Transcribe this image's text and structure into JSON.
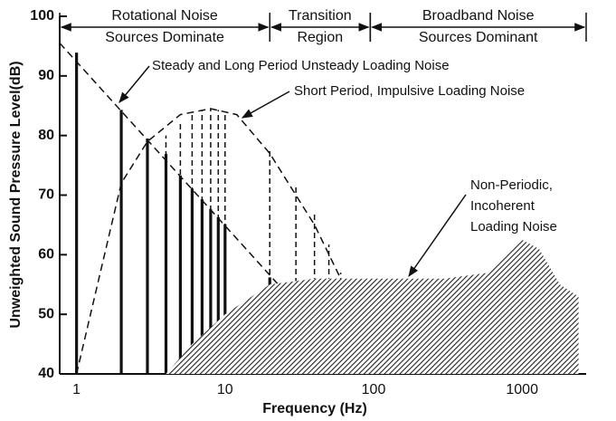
{
  "chart_data": {
    "type": "line",
    "xlabel": "Frequency (Hz)",
    "ylabel": "Unweighted Sound Pressure Level(dB)",
    "xlog": true,
    "xlim": [
      0.77,
      2700
    ],
    "ylim": [
      40,
      100
    ],
    "xticks": [
      1,
      10,
      100,
      1000
    ],
    "yticks": [
      40,
      50,
      60,
      70,
      80,
      90,
      100
    ],
    "regions": [
      {
        "label": [
          "Rotational Noise",
          "Sources Dominate"
        ],
        "x": [
          0.77,
          20
        ]
      },
      {
        "label": [
          "Transition",
          "Region"
        ],
        "x": [
          20,
          95
        ]
      },
      {
        "label": [
          "Broadband Noise",
          "Sources Dominant"
        ],
        "x": [
          95,
          2700
        ]
      }
    ],
    "series": [
      {
        "label": [
          "Steady and Long Period Unsteady Loading Noise"
        ],
        "style": "solid-lines",
        "color": "#111",
        "x": [
          1,
          2,
          3,
          4,
          5,
          6,
          7,
          8,
          9,
          10,
          20,
          30,
          40,
          50,
          60
        ],
        "values": [
          93.9,
          84.3,
          79.5,
          76.9,
          73.3,
          71.1,
          69.3,
          67.6,
          66.3,
          65.1,
          56.2,
          51.3,
          47.9,
          45.2,
          43.1
        ],
        "envelope_x": [
          0.77,
          80
        ],
        "envelope_values": [
          95.5,
          40
        ]
      },
      {
        "label": [
          "Short Period, Impulsive Loading Noise"
        ],
        "style": "dashed-lines",
        "color": "#111",
        "x": [
          4,
          5,
          6,
          7,
          8,
          9,
          10,
          20,
          30,
          40,
          50,
          60
        ],
        "values": [
          80,
          82.5,
          83.5,
          84.2,
          84.5,
          84.3,
          84,
          77.7,
          71.6,
          67,
          61.7,
          57
        ],
        "envelope_x": [
          1,
          2,
          3,
          5,
          8,
          12,
          20,
          40,
          60,
          80
        ],
        "envelope_values": [
          40,
          72,
          79,
          83.5,
          84.5,
          83.5,
          77,
          65,
          56,
          40
        ]
      },
      {
        "label": [
          "Non-Periodic,",
          "Incoherent",
          "Loading Noise"
        ],
        "style": "hatched-area",
        "color": "#111",
        "x": [
          4,
          6,
          10,
          20,
          40,
          100,
          300,
          600,
          800,
          1000,
          1300,
          1800,
          2400
        ],
        "values": [
          40,
          45,
          50,
          55,
          56,
          56,
          56,
          57,
          60,
          62.5,
          61,
          55,
          53
        ]
      }
    ]
  }
}
